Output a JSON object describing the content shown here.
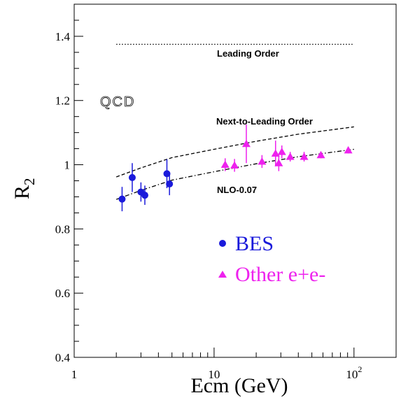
{
  "chart_data": {
    "type": "scatter",
    "title": "",
    "xlabel": "Ecm (GeV)",
    "ylabel_main": "R",
    "ylabel_sub": "2",
    "xscale": "log",
    "xlim": [
      1,
      200
    ],
    "ylim": [
      0.4,
      1.5
    ],
    "x_ticks": [
      {
        "value": 1,
        "label": "1"
      },
      {
        "value": 10,
        "label": "10"
      },
      {
        "value": 100,
        "label": "10",
        "sup": "2"
      }
    ],
    "y_ticks": [
      {
        "value": 0.4,
        "label": "0.4"
      },
      {
        "value": 0.6,
        "label": "0.6"
      },
      {
        "value": 0.8,
        "label": "0.8"
      },
      {
        "value": 1.0,
        "label": "1"
      },
      {
        "value": 1.2,
        "label": "1.2"
      },
      {
        "value": 1.4,
        "label": "1.4"
      }
    ],
    "grid": false,
    "annotation": "QCD",
    "curves": [
      {
        "name": "Leading Order",
        "style": "dotted",
        "x": [
          2,
          100
        ],
        "y": [
          1.375,
          1.375
        ]
      },
      {
        "name": "Next-to-Leading Order",
        "style": "dashed",
        "x": [
          2,
          3,
          5,
          10,
          20,
          40,
          100
        ],
        "y": [
          0.962,
          0.99,
          1.022,
          1.048,
          1.073,
          1.095,
          1.118
        ]
      },
      {
        "name": "NLO-0.07",
        "style": "dashdot",
        "x": [
          2,
          3,
          5,
          10,
          20,
          40,
          100
        ],
        "y": [
          0.892,
          0.92,
          0.952,
          0.978,
          1.003,
          1.025,
          1.048
        ]
      }
    ],
    "series": [
      {
        "name": "BES",
        "color": "#1a1adb",
        "marker": "circle",
        "points": [
          {
            "x": 2.2,
            "y": 0.893,
            "err": 0.038
          },
          {
            "x": 2.6,
            "y": 0.96,
            "err": 0.045
          },
          {
            "x": 3.0,
            "y": 0.915,
            "err": 0.03
          },
          {
            "x": 3.2,
            "y": 0.905,
            "err": 0.03
          },
          {
            "x": 4.6,
            "y": 0.972,
            "err": 0.045
          },
          {
            "x": 4.8,
            "y": 0.94,
            "err": 0.035
          }
        ]
      },
      {
        "name": "Other e+e-",
        "color": "#ee22ee",
        "marker": "triangle",
        "points": [
          {
            "x": 12,
            "y": 1.0,
            "err": 0.02
          },
          {
            "x": 14,
            "y": 0.998,
            "err": 0.02
          },
          {
            "x": 17,
            "y": 1.065,
            "err": 0.06
          },
          {
            "x": 22,
            "y": 1.01,
            "err": 0.02
          },
          {
            "x": 27.5,
            "y": 1.035,
            "err": 0.04
          },
          {
            "x": 29,
            "y": 1.005,
            "err": 0.025
          },
          {
            "x": 30.5,
            "y": 1.04,
            "err": 0.02
          },
          {
            "x": 35,
            "y": 1.025,
            "err": 0.015
          },
          {
            "x": 44,
            "y": 1.025,
            "err": 0.015
          },
          {
            "x": 58,
            "y": 1.03,
            "err": 0.01
          },
          {
            "x": 91,
            "y": 1.045,
            "err": 0.01
          }
        ]
      }
    ]
  }
}
